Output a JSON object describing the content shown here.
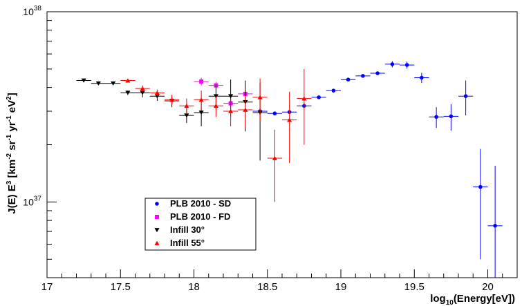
{
  "chart_data": {
    "type": "scatter",
    "xlabel": "log10(Energy[eV])",
    "ylabel": "J(E) E3 [km-2 sr-1 yr-1 eV2]",
    "xlim": [
      17,
      20.2
    ],
    "ylim": [
      4e+36,
      1e+38
    ],
    "y_scale": "log",
    "x_ticks": [
      "17",
      "17.5",
      "18",
      "18.5",
      "19",
      "19.5",
      "20"
    ],
    "y_decade_labels": [
      {
        "value": 1e+38,
        "mantissa": "10",
        "exponent": "38"
      },
      {
        "value": 1e+37,
        "mantissa": "10",
        "exponent": "37"
      }
    ],
    "grid": false,
    "legend_position": "bottom-left",
    "series": [
      {
        "name": "PLB 2010 - SD",
        "color": "#0000ff",
        "marker": "circle",
        "points": [
          {
            "x": 18.45,
            "y": 3e+37,
            "xerr": 0.05,
            "yerr": 3e+35
          },
          {
            "x": 18.55,
            "y": 2.92e+37,
            "xerr": 0.05,
            "yerr": 3e+35
          },
          {
            "x": 18.65,
            "y": 2.97e+37,
            "xerr": 0.05,
            "yerr": 3e+35
          },
          {
            "x": 18.75,
            "y": 3.2e+37,
            "xerr": 0.05,
            "yerr": 3e+35
          },
          {
            "x": 18.85,
            "y": 3.55e+37,
            "xerr": 0.05,
            "yerr": 4e+35
          },
          {
            "x": 18.95,
            "y": 3.85e+37,
            "xerr": 0.05,
            "yerr": 4e+35
          },
          {
            "x": 19.05,
            "y": 4.4e+37,
            "xerr": 0.05,
            "yerr": 5e+35
          },
          {
            "x": 19.15,
            "y": 4.6e+37,
            "xerr": 0.05,
            "yerr": 5e+35
          },
          {
            "x": 19.25,
            "y": 4.75e+37,
            "xerr": 0.05,
            "yerr": 6e+35
          },
          {
            "x": 19.35,
            "y": 5.3e+37,
            "xerr": 0.05,
            "yerr": 2e+36
          },
          {
            "x": 19.45,
            "y": 5.25e+37,
            "xerr": 0.05,
            "yerr": 2.2e+36
          },
          {
            "x": 19.55,
            "y": 4.5e+37,
            "xerr": 0.05,
            "yerr": 2.8e+36
          },
          {
            "x": 19.65,
            "y": 2.8e+37,
            "xerr": 0.05,
            "yerr": 3.5e+36
          },
          {
            "x": 19.75,
            "y": 2.82e+37,
            "xerr": 0.05,
            "yerr": 4.5e+36
          },
          {
            "x": 19.85,
            "y": 3.6e+37,
            "xerr": 0.05,
            "yerr": 7.5e+36
          },
          {
            "x": 19.95,
            "y": 1.2e+37,
            "xerr": 0.05,
            "yerr": 7e+36
          },
          {
            "x": 20.05,
            "y": 7.5e+36,
            "xerr": 0.05,
            "yerr": 8e+36
          }
        ]
      },
      {
        "name": "PLB 2010 - FD",
        "color": "#ff00ff",
        "marker": "square",
        "points": [
          {
            "x": 18.05,
            "y": 4.3e+37,
            "xerr": 0.05,
            "yerr": 2e+36
          },
          {
            "x": 18.15,
            "y": 4.1e+37,
            "xerr": 0.05,
            "yerr": 1.8e+36
          },
          {
            "x": 18.25,
            "y": 3.3e+37,
            "xerr": 0.05,
            "yerr": 1.5e+36
          },
          {
            "x": 18.35,
            "y": 3.7e+37,
            "xerr": 0.05,
            "yerr": 1.8e+36
          }
        ]
      },
      {
        "name": "Infill 30°",
        "color": "#000000",
        "marker": "triangle-down",
        "points": [
          {
            "x": 17.25,
            "y": 4.35e+37,
            "xerr": 0.05,
            "yerr": 5e+35
          },
          {
            "x": 17.35,
            "y": 4.2e+37,
            "xerr": 0.05,
            "yerr": 5e+35
          },
          {
            "x": 17.45,
            "y": 4.2e+37,
            "xerr": 0.05,
            "yerr": 5e+35
          },
          {
            "x": 17.55,
            "y": 3.75e+37,
            "xerr": 0.05,
            "yerr": 1e+36
          },
          {
            "x": 17.65,
            "y": 3.75e+37,
            "xerr": 0.05,
            "yerr": 2e+36
          },
          {
            "x": 17.75,
            "y": 3.6e+37,
            "xerr": 0.05,
            "yerr": 2e+36
          },
          {
            "x": 17.85,
            "y": 3.4e+37,
            "xerr": 0.05,
            "yerr": 2.5e+36
          },
          {
            "x": 17.95,
            "y": 2.85e+37,
            "xerr": 0.05,
            "yerr": 2.5e+36
          },
          {
            "x": 18.05,
            "y": 2.95e+37,
            "xerr": 0.05,
            "yerr": 4.5e+36
          },
          {
            "x": 18.15,
            "y": 3.6e+37,
            "xerr": 0.05,
            "yerr": 5.5e+36
          },
          {
            "x": 18.25,
            "y": 3.6e+37,
            "xerr": 0.05,
            "yerr": 8e+36
          },
          {
            "x": 18.35,
            "y": 3.35e+37,
            "xerr": 0.05,
            "yerr": 1e+37
          },
          {
            "x": 18.45,
            "y": 2.95e+37,
            "xerr": 0.05,
            "yerr": 1.3e+37
          }
        ]
      },
      {
        "name": "Infill 55°",
        "color": "#ff0000",
        "marker": "triangle-up",
        "points": [
          {
            "x": 17.55,
            "y": 4.35e+37,
            "xerr": 0.05,
            "yerr": 1e+36
          },
          {
            "x": 17.65,
            "y": 3.95e+37,
            "xerr": 0.05,
            "yerr": 1.5e+36
          },
          {
            "x": 17.75,
            "y": 3.75e+37,
            "xerr": 0.05,
            "yerr": 1.5e+36
          },
          {
            "x": 17.85,
            "y": 3.45e+37,
            "xerr": 0.05,
            "yerr": 2e+36
          },
          {
            "x": 17.95,
            "y": 3.2e+37,
            "xerr": 0.05,
            "yerr": 3e+36
          },
          {
            "x": 18.05,
            "y": 3.45e+37,
            "xerr": 0.05,
            "yerr": 4e+36
          },
          {
            "x": 18.15,
            "y": 3.2e+37,
            "xerr": 0.05,
            "yerr": 4e+36
          },
          {
            "x": 18.25,
            "y": 3e+37,
            "xerr": 0.05,
            "yerr": 5e+36
          },
          {
            "x": 18.35,
            "y": 3.05e+37,
            "xerr": 0.05,
            "yerr": 6e+36
          },
          {
            "x": 18.45,
            "y": 3.55e+37,
            "xerr": 0.05,
            "yerr": 9e+36
          },
          {
            "x": 18.55,
            "y": 1.7e+37,
            "xerr": 0.05,
            "yerr": 7e+36
          },
          {
            "x": 18.65,
            "y": 2.7e+37,
            "xerr": 0.05,
            "yerr": 1.1e+37
          },
          {
            "x": 18.75,
            "y": 3.5e+37,
            "xerr": 0.05,
            "yerr": 1.5e+37
          }
        ]
      }
    ]
  }
}
